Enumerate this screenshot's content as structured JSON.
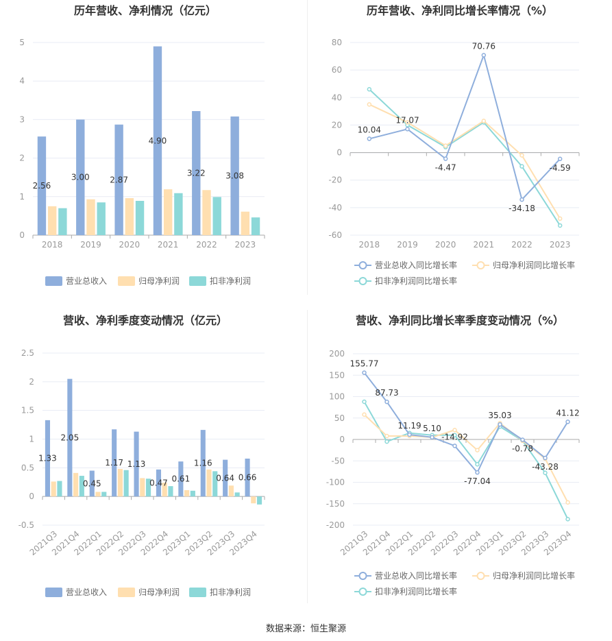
{
  "source_text": "数据来源：恒生聚源",
  "colors": {
    "rev": "#8eaedc",
    "net": "#ffdfb0",
    "ded": "#8cd8d8",
    "axis": "#aaaaaa",
    "grid": "#e8ecf4"
  },
  "chart_data": [
    {
      "id": "annual-bar",
      "type": "bar",
      "title": "历年营收、净利情况（亿元）",
      "categories": [
        "2018",
        "2019",
        "2020",
        "2021",
        "2022",
        "2023"
      ],
      "series": [
        {
          "name": "营业总收入",
          "color": "#8eaedc",
          "values": [
            2.56,
            3.0,
            2.87,
            4.9,
            3.22,
            3.08
          ],
          "labels": [
            "2.56",
            "3.00",
            "2.87",
            "4.90",
            "3.22",
            "3.08"
          ]
        },
        {
          "name": "归母净利润",
          "color": "#ffdfb0",
          "values": [
            0.75,
            0.93,
            0.96,
            1.19,
            1.17,
            0.61
          ]
        },
        {
          "name": "扣非净利润",
          "color": "#8cd8d8",
          "values": [
            0.7,
            0.85,
            0.89,
            1.09,
            0.99,
            0.46
          ]
        }
      ],
      "ylim": [
        0,
        5
      ],
      "yticks": [
        0,
        1,
        2,
        3,
        4,
        5
      ],
      "ytick_labels": [
        "0",
        "1",
        "2",
        "3",
        "4",
        "5"
      ],
      "grid": true,
      "legend": "bottom"
    },
    {
      "id": "annual-line",
      "type": "line",
      "title": "历年营收、净利同比增长率情况（%）",
      "categories": [
        "2018",
        "2019",
        "2020",
        "2021",
        "2022",
        "2023"
      ],
      "series": [
        {
          "name": "营业总收入同比增长率",
          "color": "#8eaedc",
          "values": [
            10.04,
            17.07,
            -4.47,
            70.76,
            -34.18,
            -4.59
          ],
          "labels": [
            "10.04",
            "17.07",
            "-4.47",
            "70.76",
            "-34.18",
            "-4.59"
          ]
        },
        {
          "name": "归母净利润同比增长率",
          "color": "#ffdfb0",
          "values": [
            35,
            22,
            5,
            23,
            -2,
            -48
          ]
        },
        {
          "name": "扣非净利润同比增长率",
          "color": "#8cd8d8",
          "values": [
            46,
            20,
            4,
            22,
            -10,
            -53
          ]
        }
      ],
      "ylim": [
        -60,
        80
      ],
      "yticks": [
        -60,
        -40,
        -20,
        0,
        20,
        40,
        60,
        80
      ],
      "ytick_labels": [
        "-60",
        "-40",
        "-20",
        "0",
        "20",
        "40",
        "60",
        "80"
      ],
      "grid": true,
      "legend": "bottom"
    },
    {
      "id": "quarter-bar",
      "type": "bar",
      "title": "营收、净利季度变动情况（亿元）",
      "categories": [
        "2021Q3",
        "2021Q4",
        "2022Q1",
        "2022Q2",
        "2022Q3",
        "2022Q4",
        "2023Q1",
        "2023Q2",
        "2023Q3",
        "2023Q4"
      ],
      "series": [
        {
          "name": "营业总收入",
          "color": "#8eaedc",
          "values": [
            1.33,
            2.05,
            0.45,
            1.17,
            1.13,
            0.47,
            0.61,
            1.16,
            0.64,
            0.66
          ],
          "labels": [
            "1.33",
            "2.05",
            "0.45",
            "1.17",
            "1.13",
            "0.47",
            "0.61",
            "1.16",
            "0.64",
            "0.66"
          ]
        },
        {
          "name": "归母净利润",
          "color": "#ffdfb0",
          "values": [
            0.26,
            0.41,
            0.08,
            0.48,
            0.32,
            0.24,
            0.11,
            0.47,
            0.19,
            -0.12
          ]
        },
        {
          "name": "扣非净利润",
          "color": "#8cd8d8",
          "values": [
            0.27,
            0.36,
            0.08,
            0.46,
            0.31,
            0.18,
            0.1,
            0.44,
            0.07,
            -0.14
          ]
        }
      ],
      "ylim": [
        -0.5,
        2.5
      ],
      "yticks": [
        -0.5,
        0,
        0.5,
        1,
        1.5,
        2,
        2.5
      ],
      "ytick_labels": [
        "-0.5",
        "0",
        "0.5",
        "1",
        "1.5",
        "2",
        "2.5"
      ],
      "grid": true,
      "legend": "bottom"
    },
    {
      "id": "quarter-line",
      "type": "line",
      "title": "营收、净利同比增长率季度变动情况（%）",
      "categories": [
        "2021Q3",
        "2021Q4",
        "2022Q1",
        "2022Q2",
        "2022Q3",
        "2022Q4",
        "2023Q1",
        "2023Q2",
        "2023Q3",
        "2023Q4"
      ],
      "series": [
        {
          "name": "营业总收入同比增长率",
          "color": "#8eaedc",
          "values": [
            155.77,
            87.73,
            11.19,
            5.1,
            -14.92,
            -77.04,
            35.03,
            -0.78,
            -43.28,
            41.12
          ],
          "labels": [
            "155.77",
            "87.73",
            "11.19",
            "5.10",
            "-14.92",
            "-77.04",
            "35.03",
            "-0.78",
            "-43.28",
            "41.12"
          ]
        },
        {
          "name": "归母净利润同比增长率",
          "color": "#ffdfb0",
          "values": [
            58,
            8,
            8,
            5,
            22,
            -25,
            38,
            -3,
            -45,
            -147
          ]
        },
        {
          "name": "扣非净利润同比增长率",
          "color": "#8cd8d8",
          "values": [
            88,
            -5,
            15,
            10,
            10,
            -58,
            30,
            -3,
            -78,
            -186
          ]
        }
      ],
      "ylim": [
        -200,
        200
      ],
      "yticks": [
        -200,
        -150,
        -100,
        -50,
        0,
        50,
        100,
        150,
        200
      ],
      "ytick_labels": [
        "-200",
        "-150",
        "-100",
        "-50",
        "0",
        "50",
        "100",
        "150",
        "200"
      ],
      "grid": true,
      "legend": "bottom"
    }
  ]
}
